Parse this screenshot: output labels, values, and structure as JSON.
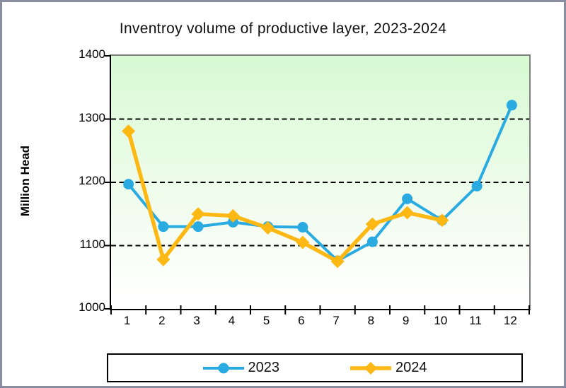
{
  "window": {
    "background": "#ffffff",
    "frame_color": "#8a8da0"
  },
  "chart_data": {
    "type": "line",
    "title": "Inventroy volume of productive layer, 2023-2024",
    "xlabel": "",
    "ylabel": "Million Head",
    "x": [
      1,
      2,
      3,
      4,
      5,
      6,
      7,
      8,
      9,
      10,
      11,
      12
    ],
    "ylim": [
      1000,
      1400
    ],
    "ytick_step": 100,
    "yticks": [
      1000,
      1100,
      1200,
      1300,
      1400
    ],
    "gridlines": [
      1100,
      1200,
      1300
    ],
    "grid_style": "dashed",
    "grid_color": "#000000",
    "legend_position": "bottom",
    "plot_background": {
      "top": "#d7fad3",
      "bottom": "#ffffff"
    },
    "series": [
      {
        "name": "2023",
        "color": "#29ABE2",
        "marker": "circle",
        "line_width": 4,
        "values": [
          1197,
          1130,
          1130,
          1137,
          1130,
          1129,
          1076,
          1106,
          1174,
          1140,
          1194,
          1322
        ]
      },
      {
        "name": "2024",
        "color": "#FDB813",
        "marker": "diamond",
        "line_width": 5.5,
        "values": [
          1281,
          1078,
          1150,
          1147,
          1128,
          1105,
          1075,
          1134,
          1152,
          1140
        ]
      }
    ]
  }
}
